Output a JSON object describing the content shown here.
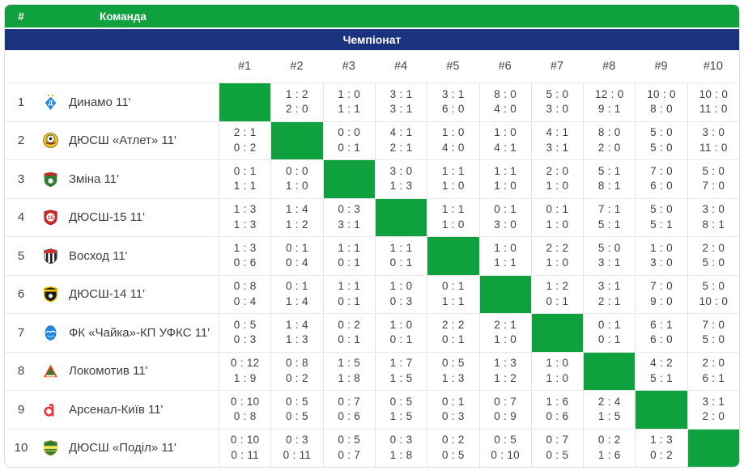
{
  "header": {
    "rank_label": "#",
    "team_label": "Команда",
    "section_label": "Чемпіонат"
  },
  "columns": [
    "#1",
    "#2",
    "#3",
    "#4",
    "#5",
    "#6",
    "#7",
    "#8",
    "#9",
    "#10"
  ],
  "colors": {
    "accent_green": "#0EA13E",
    "header_navy": "#1B327E",
    "score_text": "#3C4043",
    "grid_line": "#E3E3E3"
  },
  "teams": [
    {
      "rank": "1",
      "name": "Динамо 11'",
      "logo": "dynamo",
      "results": [
        null,
        [
          "1 : 2",
          "2 : 0"
        ],
        [
          "1 : 0",
          "1 : 1"
        ],
        [
          "3 : 1",
          "3 : 1"
        ],
        [
          "3 : 1",
          "6 : 0"
        ],
        [
          "8 : 0",
          "4 : 0"
        ],
        [
          "5 : 0",
          "3 : 0"
        ],
        [
          "12 : 0",
          "9 : 1"
        ],
        [
          "10 : 0",
          "8 : 0"
        ],
        [
          "10 : 0",
          "11 : 0"
        ]
      ]
    },
    {
      "rank": "2",
      "name": "ДЮСШ «Атлет» 11'",
      "logo": "atlet",
      "results": [
        [
          "2 : 1",
          "0 : 2"
        ],
        null,
        [
          "0 : 0",
          "0 : 1"
        ],
        [
          "4 : 1",
          "2 : 1"
        ],
        [
          "1 : 0",
          "4 : 0"
        ],
        [
          "1 : 0",
          "4 : 1"
        ],
        [
          "4 : 1",
          "3 : 1"
        ],
        [
          "8 : 0",
          "2 : 0"
        ],
        [
          "5 : 0",
          "5 : 0"
        ],
        [
          "3 : 0",
          "11 : 0"
        ]
      ]
    },
    {
      "rank": "3",
      "name": "Зміна 11'",
      "logo": "zmina",
      "results": [
        [
          "0 : 1",
          "1 : 1"
        ],
        [
          "0 : 0",
          "1 : 0"
        ],
        null,
        [
          "3 : 0",
          "1 : 3"
        ],
        [
          "1 : 1",
          "1 : 0"
        ],
        [
          "1 : 1",
          "1 : 0"
        ],
        [
          "2 : 0",
          "1 : 0"
        ],
        [
          "5 : 1",
          "8 : 1"
        ],
        [
          "7 : 0",
          "6 : 0"
        ],
        [
          "5 : 0",
          "7 : 0"
        ]
      ]
    },
    {
      "rank": "4",
      "name": "ДЮСШ-15 11'",
      "logo": "dyussh15",
      "results": [
        [
          "1 : 3",
          "1 : 3"
        ],
        [
          "1 : 4",
          "1 : 2"
        ],
        [
          "0 : 3",
          "3 : 1"
        ],
        null,
        [
          "1 : 1",
          "1 : 0"
        ],
        [
          "0 : 1",
          "3 : 0"
        ],
        [
          "0 : 1",
          "1 : 0"
        ],
        [
          "7 : 1",
          "5 : 1"
        ],
        [
          "5 : 0",
          "5 : 1"
        ],
        [
          "3 : 0",
          "8 : 1"
        ]
      ]
    },
    {
      "rank": "5",
      "name": "Восход 11'",
      "logo": "voskhod",
      "results": [
        [
          "1 : 3",
          "0 : 6"
        ],
        [
          "0 : 1",
          "0 : 4"
        ],
        [
          "1 : 1",
          "0 : 1"
        ],
        [
          "1 : 1",
          "0 : 1"
        ],
        null,
        [
          "1 : 0",
          "1 : 1"
        ],
        [
          "2 : 2",
          "1 : 0"
        ],
        [
          "5 : 0",
          "3 : 1"
        ],
        [
          "1 : 0",
          "3 : 0"
        ],
        [
          "2 : 0",
          "5 : 0"
        ]
      ]
    },
    {
      "rank": "6",
      "name": "ДЮСШ-14 11'",
      "logo": "dyussh14",
      "results": [
        [
          "0 : 8",
          "0 : 4"
        ],
        [
          "0 : 1",
          "1 : 4"
        ],
        [
          "1 : 1",
          "0 : 1"
        ],
        [
          "1 : 0",
          "0 : 3"
        ],
        [
          "0 : 1",
          "1 : 1"
        ],
        null,
        [
          "1 : 2",
          "0 : 1"
        ],
        [
          "3 : 1",
          "2 : 1"
        ],
        [
          "7 : 0",
          "9 : 0"
        ],
        [
          "5 : 0",
          "10 : 0"
        ]
      ]
    },
    {
      "rank": "7",
      "name": "ФК «Чайка»-КП УФКС 11'",
      "logo": "chaika",
      "results": [
        [
          "0 : 5",
          "0 : 3"
        ],
        [
          "1 : 4",
          "1 : 3"
        ],
        [
          "0 : 2",
          "0 : 1"
        ],
        [
          "1 : 0",
          "0 : 1"
        ],
        [
          "2 : 2",
          "0 : 1"
        ],
        [
          "2 : 1",
          "1 : 0"
        ],
        null,
        [
          "0 : 1",
          "0 : 1"
        ],
        [
          "6 : 1",
          "6 : 0"
        ],
        [
          "7 : 0",
          "5 : 0"
        ]
      ]
    },
    {
      "rank": "8",
      "name": "Локомотив 11'",
      "logo": "lokomotyv",
      "results": [
        [
          "0 : 12",
          "1 : 9"
        ],
        [
          "0 : 8",
          "0 : 2"
        ],
        [
          "1 : 5",
          "1 : 8"
        ],
        [
          "1 : 7",
          "1 : 5"
        ],
        [
          "0 : 5",
          "1 : 3"
        ],
        [
          "1 : 3",
          "1 : 2"
        ],
        [
          "1 : 0",
          "1 : 0"
        ],
        null,
        [
          "4 : 2",
          "5 : 1"
        ],
        [
          "2 : 0",
          "6 : 1"
        ]
      ]
    },
    {
      "rank": "9",
      "name": "Арсенал-Київ 11'",
      "logo": "arsenal",
      "results": [
        [
          "0 : 10",
          "0 : 8"
        ],
        [
          "0 : 5",
          "0 : 5"
        ],
        [
          "0 : 7",
          "0 : 6"
        ],
        [
          "0 : 5",
          "1 : 5"
        ],
        [
          "0 : 1",
          "0 : 3"
        ],
        [
          "0 : 7",
          "0 : 9"
        ],
        [
          "1 : 6",
          "0 : 6"
        ],
        [
          "2 : 4",
          "1 : 5"
        ],
        null,
        [
          "3 : 1",
          "2 : 0"
        ]
      ]
    },
    {
      "rank": "10",
      "name": "ДЮСШ «Поділ» 11'",
      "logo": "podil",
      "results": [
        [
          "0 : 10",
          "0 : 11"
        ],
        [
          "0 : 3",
          "0 : 11"
        ],
        [
          "0 : 5",
          "0 : 7"
        ],
        [
          "0 : 3",
          "1 : 8"
        ],
        [
          "0 : 2",
          "0 : 5"
        ],
        [
          "0 : 5",
          "0 : 10"
        ],
        [
          "0 : 7",
          "0 : 5"
        ],
        [
          "0 : 2",
          "1 : 6"
        ],
        [
          "1 : 3",
          "0 : 2"
        ],
        null
      ]
    }
  ]
}
